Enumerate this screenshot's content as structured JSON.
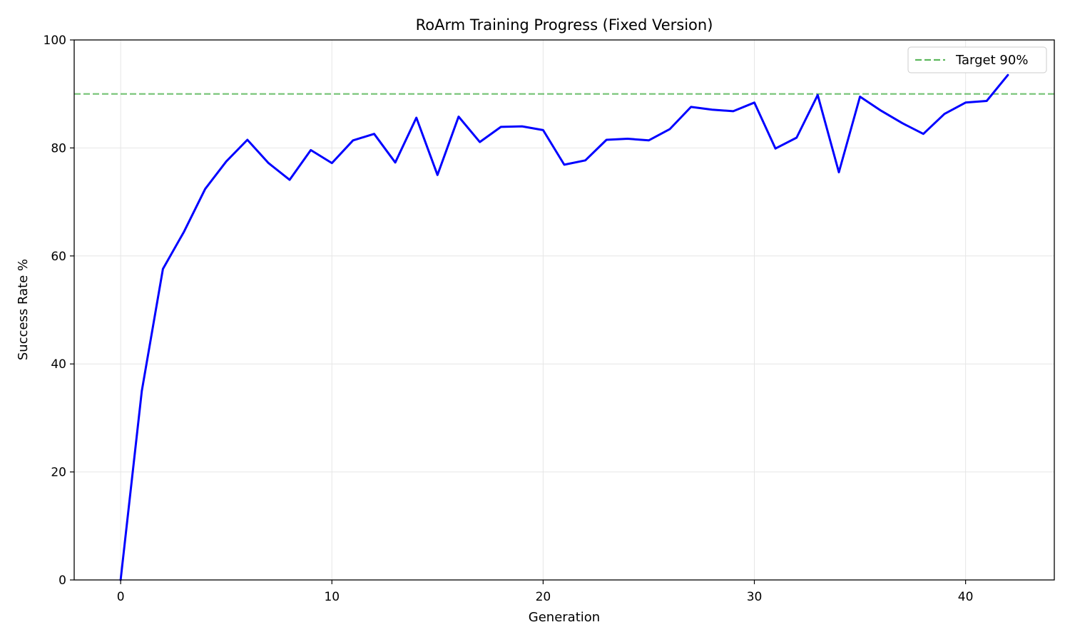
{
  "chart_data": {
    "type": "line",
    "title": "RoArm Training Progress (Fixed Version)",
    "xlabel": "Generation",
    "ylabel": "Success Rate %",
    "xlim": [
      -2.2,
      44.2
    ],
    "ylim": [
      0,
      100
    ],
    "xticks": [
      0,
      10,
      20,
      30,
      40
    ],
    "yticks": [
      0,
      20,
      40,
      60,
      80,
      100
    ],
    "grid": true,
    "legend_position": "top-right",
    "series": [
      {
        "name": "",
        "color": "#0000ff",
        "x": [
          0,
          1,
          2,
          3,
          4,
          5,
          6,
          7,
          8,
          9,
          10,
          11,
          12,
          13,
          14,
          15,
          16,
          17,
          18,
          19,
          20,
          21,
          22,
          23,
          24,
          25,
          26,
          27,
          28,
          29,
          30,
          31,
          32,
          33,
          34,
          35,
          36,
          37,
          38,
          39,
          40,
          41,
          42
        ],
        "values": [
          0,
          35,
          57.6,
          64.5,
          72.4,
          77.5,
          81.5,
          77.2,
          74.1,
          79.6,
          77.2,
          81.4,
          82.6,
          77.3,
          85.6,
          75,
          85.8,
          81.1,
          83.9,
          84,
          83.3,
          76.9,
          77.7,
          81.5,
          81.7,
          81.4,
          83.5,
          87.6,
          87.1,
          86.8,
          88.4,
          79.9,
          81.9,
          89.8,
          75.5,
          89.5,
          86.9,
          84.6,
          82.6,
          86.3,
          88.4,
          88.7,
          93.5
        ]
      }
    ],
    "reference_lines": [
      {
        "name": "Target 90%",
        "y": 90,
        "color": "#5cb85c",
        "style": "dashed"
      }
    ]
  }
}
